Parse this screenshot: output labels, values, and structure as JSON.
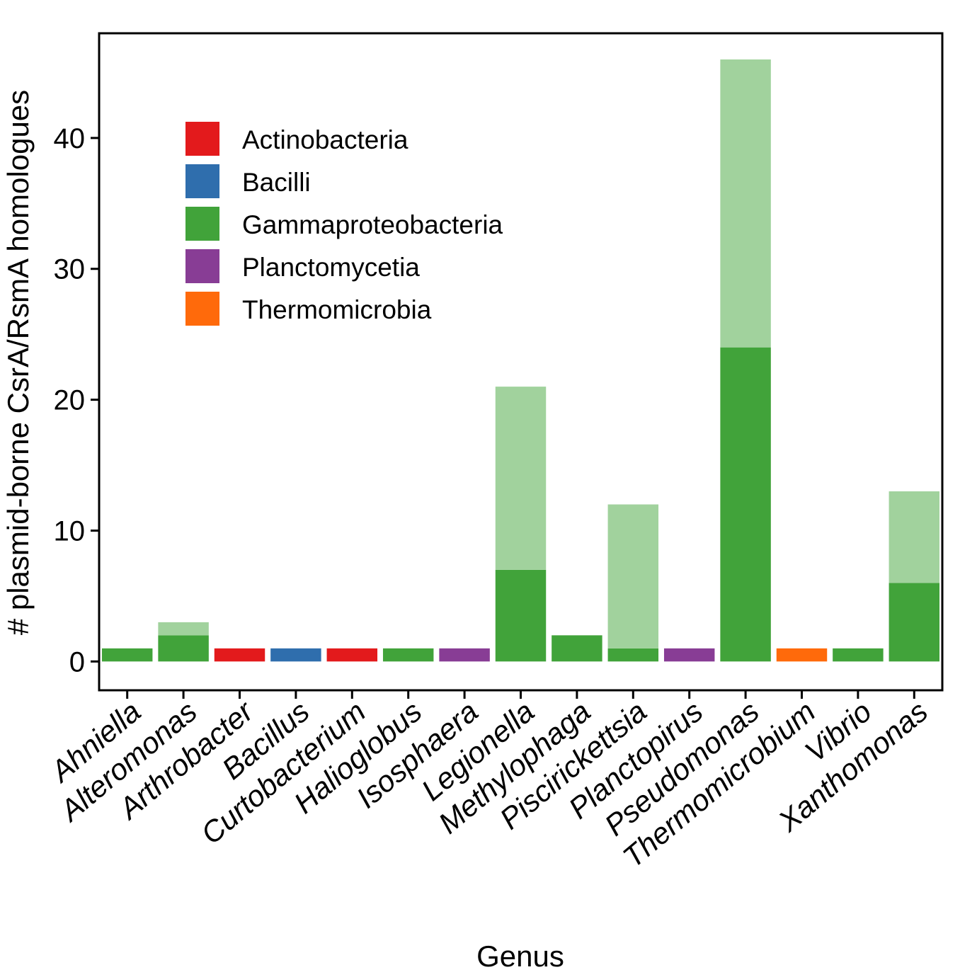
{
  "chart_data": {
    "type": "bar",
    "stacked": true,
    "xlabel": "Genus",
    "ylabel": "# plasmid-borne CsrA/RsmA homologues",
    "ylim": [
      -2.2,
      48
    ],
    "yticks": [
      0,
      10,
      20,
      30,
      40
    ],
    "legend_position": "top-left",
    "categories": [
      "Ahniella",
      "Alteromonas",
      "Arthrobacter",
      "Bacillus",
      "Curtobacterium",
      "Halioglobus",
      "Isosphaera",
      "Legionella",
      "Methylophaga",
      "Piscirickettsia",
      "Planctopirus",
      "Pseudomonas",
      "Thermomicrobium",
      "Vibrio",
      "Xanthomonas"
    ],
    "class": [
      "Gammaproteobacteria",
      "Gammaproteobacteria",
      "Actinobacteria",
      "Bacilli",
      "Actinobacteria",
      "Gammaproteobacteria",
      "Planctomycetia",
      "Gammaproteobacteria",
      "Gammaproteobacteria",
      "Gammaproteobacteria",
      "Planctomycetia",
      "Gammaproteobacteria",
      "Thermomicrobia",
      "Gammaproteobacteria",
      "Gammaproteobacteria"
    ],
    "series": [
      {
        "shade": "dark",
        "values": [
          1,
          2,
          1,
          1,
          1,
          1,
          1,
          7,
          2,
          1,
          1,
          24,
          1,
          1,
          6
        ]
      },
      {
        "shade": "light",
        "values": [
          0,
          1,
          0,
          0,
          0,
          0,
          0,
          14,
          0,
          11,
          0,
          22,
          0,
          0,
          7
        ]
      }
    ],
    "legend": [
      {
        "label": "Actinobacteria",
        "color": "#e31a1c"
      },
      {
        "label": "Bacilli",
        "color": "#2f6ead"
      },
      {
        "label": "Gammaproteobacteria",
        "color": "#41a33a"
      },
      {
        "label": "Planctomycetia",
        "color": "#883d95"
      },
      {
        "label": "Thermomicrobia",
        "color": "#ff6a0b"
      }
    ],
    "light_colors": {
      "Gammaproteobacteria": "#a1d29d"
    }
  }
}
